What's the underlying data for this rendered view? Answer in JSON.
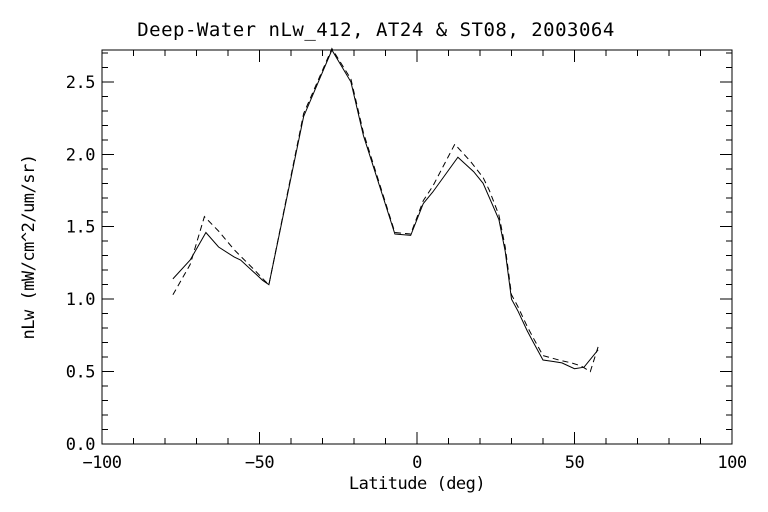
{
  "figure": {
    "background": "#ffffff",
    "foreground": "#000000"
  },
  "chart_data": {
    "type": "line",
    "title": "Deep-Water nLw_412, AT24 & ST08, 2003064",
    "xlabel": "Latitude (deg)",
    "ylabel": "nLw (mW/cm^2/um/sr)",
    "xlim": [
      -100,
      100
    ],
    "ylim": [
      0,
      2.72
    ],
    "grid": false,
    "legend_position": "none",
    "x_major_ticks": [
      -100,
      -50,
      0,
      50,
      100
    ],
    "x_minor_step": 10,
    "y_major_ticks": [
      0,
      0.5,
      1.0,
      1.5,
      2.0,
      2.5
    ],
    "y_minor_step": 0.1,
    "x_tick_labels": [
      "−100",
      "−50",
      "0",
      "50",
      "100"
    ],
    "y_tick_labels": [
      "0.0",
      "0.5",
      "1.0",
      "1.5",
      "2.0",
      "2.5"
    ],
    "line_color": "#000000",
    "series": [
      {
        "name": "solid-line",
        "style": "solid",
        "points": [
          [
            -77.5,
            1.14
          ],
          [
            -72,
            1.27
          ],
          [
            -67,
            1.46
          ],
          [
            -63,
            1.36
          ],
          [
            -58,
            1.29
          ],
          [
            -56,
            1.27
          ],
          [
            -49,
            1.13
          ],
          [
            -47,
            1.1
          ],
          [
            -36,
            2.26
          ],
          [
            -27,
            2.72
          ],
          [
            -21,
            2.5
          ],
          [
            -17,
            2.13
          ],
          [
            -7,
            1.45
          ],
          [
            -2,
            1.44
          ],
          [
            2,
            1.66
          ],
          [
            5,
            1.74
          ],
          [
            13,
            1.98
          ],
          [
            18,
            1.88
          ],
          [
            21,
            1.8
          ],
          [
            26,
            1.55
          ],
          [
            28,
            1.33
          ],
          [
            30,
            1.0
          ],
          [
            32,
            0.92
          ],
          [
            35,
            0.78
          ],
          [
            37,
            0.7
          ],
          [
            40,
            0.58
          ],
          [
            43,
            0.57
          ],
          [
            46,
            0.56
          ],
          [
            50,
            0.52
          ],
          [
            53,
            0.53
          ],
          [
            57.5,
            0.65
          ]
        ]
      },
      {
        "name": "dashed-line",
        "style": "dashed",
        "points": [
          [
            -77.5,
            1.03
          ],
          [
            -72,
            1.24
          ],
          [
            -67.5,
            1.57
          ],
          [
            -63,
            1.47
          ],
          [
            -58,
            1.34
          ],
          [
            -52,
            1.21
          ],
          [
            -48,
            1.12
          ],
          [
            -47,
            1.1
          ],
          [
            -36,
            2.28
          ],
          [
            -27,
            2.73
          ],
          [
            -21,
            2.52
          ],
          [
            -17,
            2.15
          ],
          [
            -7,
            1.46
          ],
          [
            -2,
            1.45
          ],
          [
            2,
            1.68
          ],
          [
            5,
            1.78
          ],
          [
            12,
            2.07
          ],
          [
            17,
            1.95
          ],
          [
            21,
            1.84
          ],
          [
            23,
            1.75
          ],
          [
            26,
            1.58
          ],
          [
            28,
            1.36
          ],
          [
            30,
            1.03
          ],
          [
            32,
            0.95
          ],
          [
            35,
            0.81
          ],
          [
            37,
            0.73
          ],
          [
            40,
            0.61
          ],
          [
            45,
            0.58
          ],
          [
            49,
            0.56
          ],
          [
            52,
            0.54
          ],
          [
            55,
            0.5
          ],
          [
            57.5,
            0.67
          ]
        ]
      }
    ]
  }
}
